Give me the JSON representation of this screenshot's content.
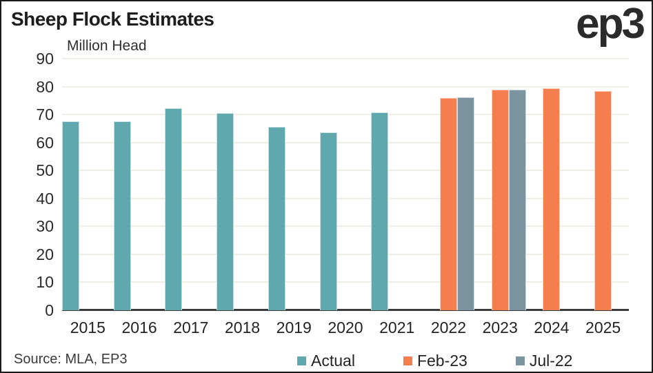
{
  "header": {
    "title": "Sheep Flock Estimates",
    "logo": "ep3"
  },
  "footer": {
    "source": "Source: MLA, EP3"
  },
  "colors": {
    "gridline": "#F0EEE4",
    "axis": "#3B3B3B",
    "frame_border": "#1A1A1A",
    "teal": "#5FA8AD",
    "orange": "#F47E4D",
    "gray": "#7C94A0"
  },
  "chart_data": {
    "type": "bar",
    "title": "Sheep Flock Estimates",
    "ylabel": "Million Head",
    "xlabel": "",
    "ylim": [
      0,
      90
    ],
    "yticks": [
      0,
      10,
      20,
      30,
      40,
      50,
      60,
      70,
      80,
      90
    ],
    "grid": true,
    "legend_position": "bottom",
    "categories": [
      "2015",
      "2016",
      "2017",
      "2018",
      "2019",
      "2020",
      "2021",
      "2022",
      "2023",
      "2024",
      "2025"
    ],
    "series": [
      {
        "name": "Actual",
        "color": "#5FA8AD",
        "values": [
          67.6,
          67.5,
          72.2,
          70.6,
          65.5,
          63.7,
          70.7,
          null,
          null,
          null,
          null
        ]
      },
      {
        "name": "Feb-23",
        "color": "#F47E4D",
        "values": [
          null,
          null,
          null,
          null,
          null,
          null,
          null,
          76.0,
          78.8,
          79.5,
          78.3
        ]
      },
      {
        "name": "Jul-22",
        "color": "#7C94A0",
        "values": [
          null,
          null,
          null,
          null,
          null,
          null,
          null,
          76.2,
          78.9,
          null,
          null
        ]
      }
    ]
  }
}
